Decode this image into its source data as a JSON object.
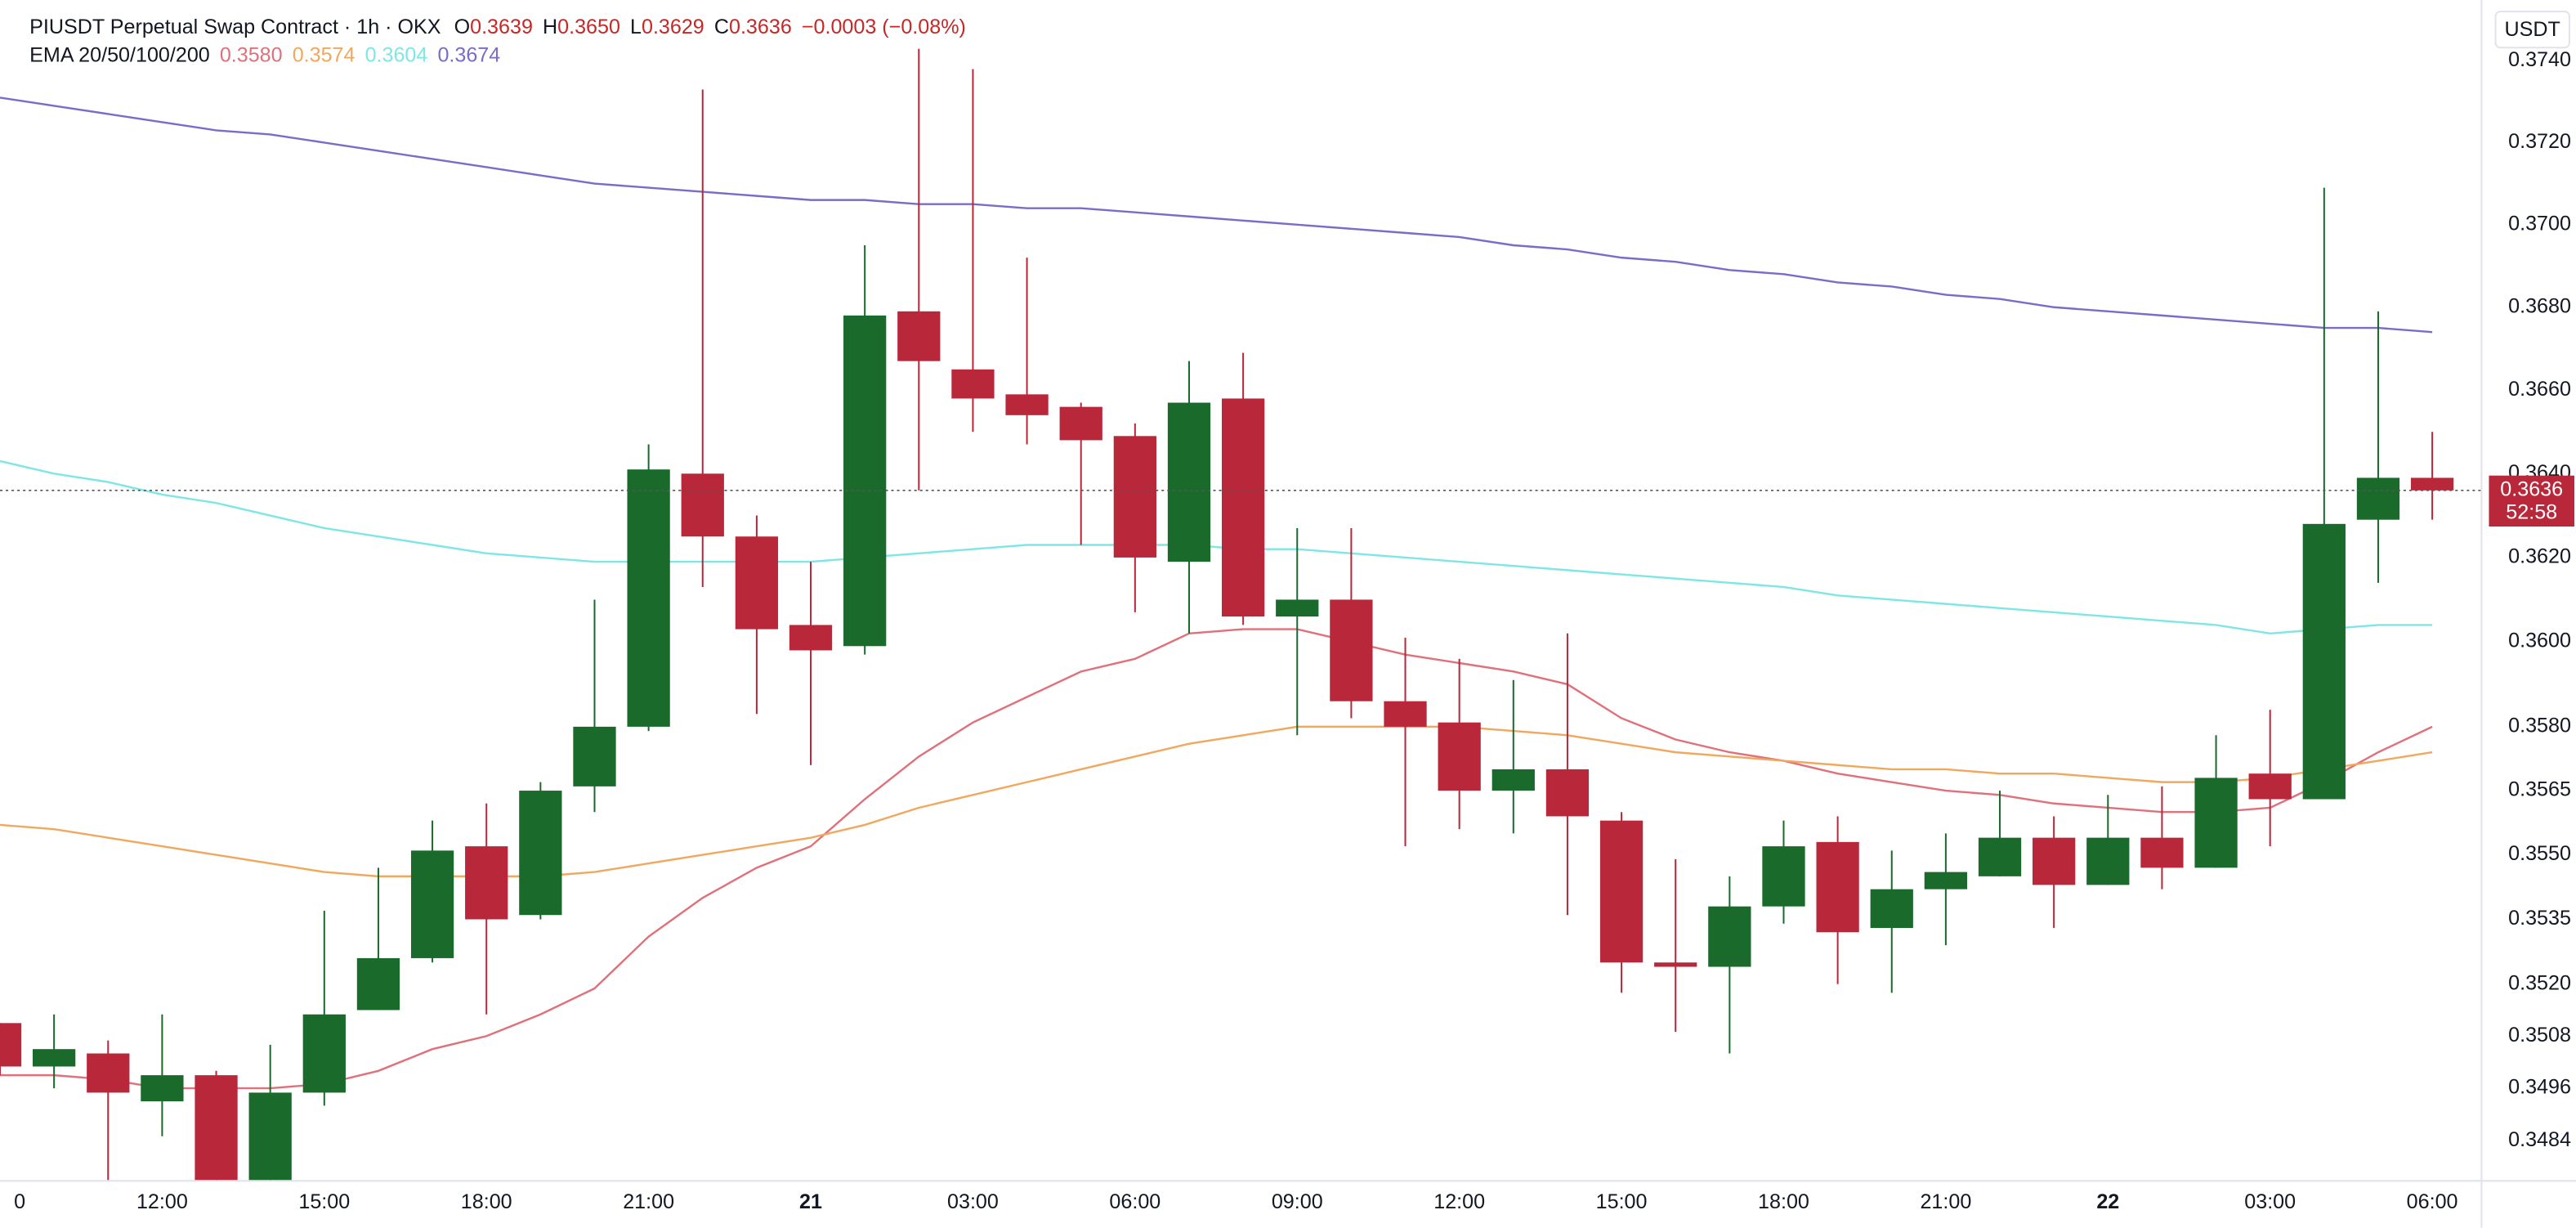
{
  "chart_data": {
    "type": "candlestick",
    "header": {
      "title": "PIUSDT Perpetual Swap Contract · 1h · OKX",
      "ohlc": [
        {
          "key": "O",
          "value": "0.3639"
        },
        {
          "key": "H",
          "value": "0.3650"
        },
        {
          "key": "L",
          "value": "0.3629"
        },
        {
          "key": "C",
          "value": "0.3636"
        }
      ],
      "change": "−0.0003 (−0.08%)"
    },
    "currency": "USDT",
    "log_scale": true,
    "up_color": "#1a6a2c",
    "down_color": "#b8283a",
    "categories": [
      "0",
      null,
      null,
      "12:00",
      null,
      null,
      "15:00",
      null,
      null,
      "18:00",
      null,
      null,
      "21:00",
      null,
      null,
      "21",
      null,
      null,
      "03:00",
      null,
      null,
      "06:00",
      null,
      null,
      "09:00",
      null,
      null,
      "12:00",
      null,
      null,
      "15:00",
      null,
      null,
      "18:00",
      null,
      null,
      "21:00",
      null,
      null,
      "22",
      null,
      null,
      "03:00",
      null,
      null,
      "06:00"
    ],
    "open": [
      0.3511,
      0.3501,
      0.3504,
      0.3493,
      0.3499,
      0.347,
      0.3495,
      0.3514,
      0.3526,
      0.3552,
      0.3536,
      0.3566,
      0.358,
      0.364,
      0.3625,
      0.3604,
      0.3599,
      0.3679,
      0.3665,
      0.3659,
      0.3656,
      0.3649,
      0.3619,
      0.3658,
      0.3606,
      0.361,
      0.3586,
      0.3581,
      0.3565,
      0.357,
      0.3558,
      0.3525,
      0.3524,
      0.3538,
      0.3553,
      0.3533,
      0.3542,
      0.3545,
      0.3554,
      0.3543,
      0.3554,
      0.3547,
      0.3569,
      0.3563,
      0.3629,
      0.3639
    ],
    "high": [
      0.3511,
      0.3513,
      0.3507,
      0.3513,
      0.35,
      0.3506,
      0.3537,
      0.3547,
      0.3558,
      0.3562,
      0.3567,
      0.361,
      0.3647,
      0.3733,
      0.363,
      0.3619,
      0.3695,
      0.3743,
      0.3738,
      0.3692,
      0.3657,
      0.3652,
      0.3667,
      0.3669,
      0.3627,
      0.3627,
      0.3601,
      0.3596,
      0.3591,
      0.3602,
      0.356,
      0.3549,
      0.3545,
      0.3558,
      0.3559,
      0.3551,
      0.3555,
      0.3565,
      0.3559,
      0.3564,
      0.3566,
      0.3578,
      0.3584,
      0.3709,
      0.3679,
      0.365
    ],
    "low": [
      0.3499,
      0.3496,
      0.3472,
      0.3485,
      0.3468,
      0.3468,
      0.3492,
      0.3514,
      0.3525,
      0.3513,
      0.3535,
      0.356,
      0.3579,
      0.3613,
      0.3583,
      0.3571,
      0.3597,
      0.3636,
      0.365,
      0.3647,
      0.3623,
      0.3607,
      0.3602,
      0.3604,
      0.3578,
      0.3582,
      0.3552,
      0.3556,
      0.3555,
      0.3536,
      0.3518,
      0.3509,
      0.3504,
      0.3534,
      0.352,
      0.3518,
      0.3529,
      0.3545,
      0.3533,
      0.3543,
      0.3542,
      0.3547,
      0.3552,
      0.3563,
      0.3614,
      0.3629
    ],
    "close": [
      0.3501,
      0.3505,
      0.3495,
      0.3499,
      0.347,
      0.3495,
      0.3513,
      0.3526,
      0.3551,
      0.3535,
      0.3565,
      0.358,
      0.3641,
      0.3625,
      0.3603,
      0.3598,
      0.3678,
      0.3667,
      0.3658,
      0.3654,
      0.3648,
      0.362,
      0.3657,
      0.3606,
      0.361,
      0.3586,
      0.358,
      0.3565,
      0.357,
      0.3559,
      0.3525,
      0.3524,
      0.3538,
      0.3552,
      0.3532,
      0.3542,
      0.3546,
      0.3554,
      0.3543,
      0.3554,
      0.3547,
      0.3568,
      0.3563,
      0.3628,
      0.3639,
      0.3636
    ],
    "ema": {
      "label": "EMA 20/50/100/200",
      "lines": [
        {
          "color": "#e0707a",
          "value_label": "0.3580",
          "values": [
            0.3499,
            0.3499,
            0.3498,
            0.3496,
            0.3496,
            0.3496,
            0.3497,
            0.35,
            0.3505,
            0.3508,
            0.3513,
            0.3519,
            0.3531,
            0.354,
            0.3547,
            0.3552,
            0.3563,
            0.3573,
            0.3581,
            0.3587,
            0.3593,
            0.3596,
            0.3602,
            0.3603,
            0.3603,
            0.36,
            0.3597,
            0.3595,
            0.3593,
            0.359,
            0.3582,
            0.3577,
            0.3574,
            0.3572,
            0.3569,
            0.3567,
            0.3565,
            0.3564,
            0.3562,
            0.3561,
            0.356,
            0.356,
            0.3561,
            0.3567,
            0.3574,
            0.358
          ]
        },
        {
          "color": "#f0a85e",
          "value_label": "0.3574",
          "values": [
            0.3557,
            0.3556,
            0.3554,
            0.3552,
            0.355,
            0.3548,
            0.3546,
            0.3545,
            0.3545,
            0.3545,
            0.3545,
            0.3546,
            0.3548,
            0.355,
            0.3552,
            0.3554,
            0.3557,
            0.3561,
            0.3564,
            0.3567,
            0.357,
            0.3573,
            0.3576,
            0.3578,
            0.358,
            0.358,
            0.358,
            0.358,
            0.3579,
            0.3578,
            0.3576,
            0.3574,
            0.3573,
            0.3572,
            0.3571,
            0.357,
            0.357,
            0.3569,
            0.3569,
            0.3568,
            0.3567,
            0.3567,
            0.3568,
            0.357,
            0.3572,
            0.3574
          ]
        },
        {
          "color": "#7fe6e6",
          "value_label": "0.3604",
          "values": [
            0.3643,
            0.364,
            0.3638,
            0.3635,
            0.3633,
            0.363,
            0.3627,
            0.3625,
            0.3623,
            0.3621,
            0.362,
            0.3619,
            0.3619,
            0.3619,
            0.3619,
            0.3619,
            0.362,
            0.3621,
            0.3622,
            0.3623,
            0.3623,
            0.3623,
            0.3623,
            0.3622,
            0.3622,
            0.3621,
            0.362,
            0.3619,
            0.3618,
            0.3617,
            0.3616,
            0.3615,
            0.3614,
            0.3613,
            0.3611,
            0.361,
            0.3609,
            0.3608,
            0.3607,
            0.3606,
            0.3605,
            0.3604,
            0.3602,
            0.3603,
            0.3604,
            0.3604
          ]
        },
        {
          "color": "#7a6cc9",
          "value_label": "0.3674",
          "values": [
            0.3731,
            0.3729,
            0.3727,
            0.3725,
            0.3723,
            0.3722,
            0.372,
            0.3718,
            0.3716,
            0.3714,
            0.3712,
            0.371,
            0.3709,
            0.3708,
            0.3707,
            0.3706,
            0.3706,
            0.3705,
            0.3705,
            0.3704,
            0.3704,
            0.3703,
            0.3702,
            0.3701,
            0.37,
            0.3699,
            0.3698,
            0.3697,
            0.3695,
            0.3694,
            0.3692,
            0.3691,
            0.3689,
            0.3688,
            0.3686,
            0.3685,
            0.3683,
            0.3682,
            0.368,
            0.3679,
            0.3678,
            0.3677,
            0.3676,
            0.3675,
            0.3675,
            0.3674
          ]
        }
      ]
    },
    "last_price": {
      "value": 0.3636,
      "countdown": "52:58",
      "color": "#b8283a"
    },
    "ylim": [
      0.3475,
      0.3755
    ],
    "yticks": [
      {
        "value": 0.374,
        "label": "0.3740"
      },
      {
        "value": 0.372,
        "label": "0.3720"
      },
      {
        "value": 0.37,
        "label": "0.3700"
      },
      {
        "value": 0.368,
        "label": "0.3680"
      },
      {
        "value": 0.366,
        "label": "0.3660"
      },
      {
        "value": 0.364,
        "label": "0.3640"
      },
      {
        "value": 0.362,
        "label": "0.3620"
      },
      {
        "value": 0.36,
        "label": "0.3600"
      },
      {
        "value": 0.358,
        "label": "0.3580"
      },
      0.3565,
      {
        "value": 0.355,
        "label": "0.3550"
      },
      0.3535,
      {
        "value": 0.352,
        "label": "0.3520"
      },
      0.3508,
      0.3496,
      0.3484
    ]
  }
}
